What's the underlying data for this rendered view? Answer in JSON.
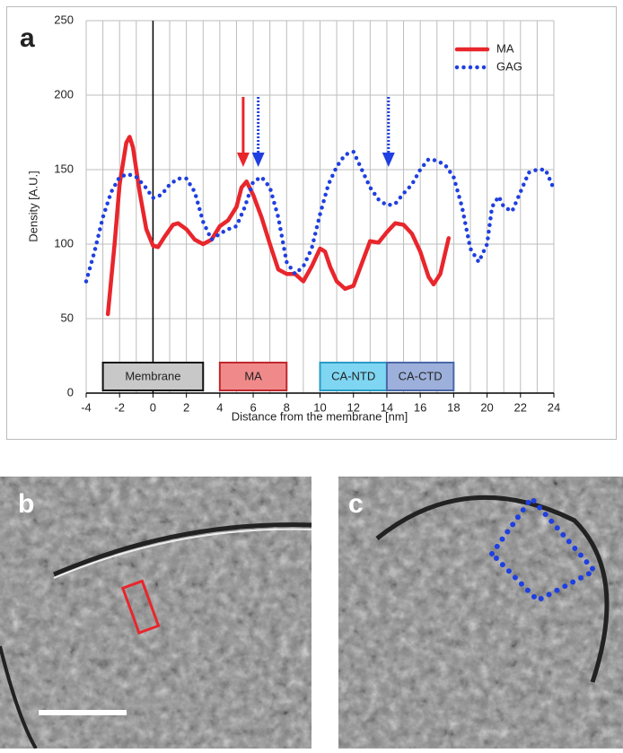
{
  "chart_data": {
    "type": "line",
    "panel_label": "a",
    "x_label": "Distance from the membrane [nm]",
    "y_label": "Density [A.U.]",
    "xlim": [
      -4,
      24
    ],
    "xticks": [
      -4,
      -2,
      0,
      2,
      4,
      6,
      8,
      10,
      12,
      14,
      16,
      18,
      20,
      22,
      24
    ],
    "xgridlines": [
      -3,
      -1,
      1,
      3,
      5,
      7,
      9,
      11,
      13,
      15,
      17,
      19,
      21,
      23
    ],
    "ylim": [
      0,
      250
    ],
    "yticks": [
      0,
      50,
      100,
      150,
      200,
      250
    ],
    "grid": true,
    "legend": "upper right",
    "series": [
      {
        "name": "MA",
        "color": "#e8262c",
        "style": "solid",
        "x": [
          -2.7,
          -2.3,
          -2,
          -1.6,
          -1.4,
          -1.2,
          -0.8,
          -0.4,
          0,
          0.3,
          0.7,
          1.2,
          1.5,
          2,
          2.5,
          3,
          3.5,
          4,
          4.5,
          5,
          5.3,
          5.6,
          6,
          6.5,
          7,
          7.5,
          8,
          8.5,
          9,
          9.5,
          10,
          10.3,
          10.6,
          11,
          11.5,
          12,
          12.5,
          13,
          13.5,
          14,
          14.5,
          15,
          15.5,
          16,
          16.5,
          16.8,
          17.2,
          17.7
        ],
        "values": [
          53,
          100,
          140,
          168,
          172,
          165,
          135,
          110,
          99,
          98,
          105,
          113,
          114,
          110,
          103,
          100,
          103,
          112,
          116,
          125,
          138,
          142,
          133,
          118,
          100,
          83,
          80,
          80,
          75,
          85,
          97,
          95,
          85,
          75,
          70,
          72,
          87,
          102,
          101,
          108,
          114,
          113,
          107,
          95,
          78,
          73,
          80,
          104
        ]
      },
      {
        "name": "GAG",
        "color": "#1f3fe0",
        "style": "dotted",
        "x": [
          -4,
          -3.5,
          -3,
          -2.5,
          -2,
          -1.5,
          -1,
          -0.5,
          0,
          0.5,
          1,
          1.5,
          2,
          2.5,
          3,
          3.5,
          4,
          4.5,
          5,
          5.5,
          6,
          6.5,
          7,
          7.5,
          8,
          8.5,
          9,
          9.5,
          10,
          10.5,
          11,
          11.5,
          12,
          12.5,
          13,
          13.5,
          14,
          14.5,
          15,
          15.5,
          16,
          16.5,
          17,
          17.5,
          18,
          18.5,
          19,
          19.5,
          20,
          20.3,
          20.7,
          21,
          21.5,
          22,
          22.5,
          23,
          23.5,
          24
        ],
        "values": [
          75,
          95,
          118,
          135,
          145,
          147,
          145,
          139,
          131,
          133,
          140,
          144,
          144,
          135,
          115,
          103,
          107,
          110,
          112,
          125,
          142,
          145,
          138,
          118,
          88,
          80,
          85,
          97,
          120,
          140,
          152,
          160,
          162,
          150,
          138,
          130,
          126,
          127,
          134,
          140,
          150,
          157,
          156,
          153,
          145,
          125,
          97,
          88,
          100,
          125,
          132,
          125,
          122,
          135,
          148,
          150,
          150,
          137
        ]
      }
    ],
    "annotations": [
      {
        "text": "Membrane",
        "x": [
          -3,
          3
        ],
        "color": "#c8c8c8",
        "edge": "#111111"
      },
      {
        "text": "MA",
        "x": [
          4,
          8
        ],
        "color": "#f08a8a",
        "edge": "#c0282c"
      },
      {
        "text": "CA-NTD",
        "x": [
          10,
          14
        ],
        "color": "#7fd6f2",
        "edge": "#2a9bc4"
      },
      {
        "text": "CA-CTD",
        "x": [
          14,
          18
        ],
        "color": "#9db0dc",
        "edge": "#4a68a8"
      }
    ],
    "arrows": [
      {
        "x": 5.4,
        "color": "#e8262c",
        "style": "solid"
      },
      {
        "x": 6.3,
        "color": "#1f3fe0",
        "style": "dotted"
      },
      {
        "x": 14.1,
        "color": "#1f3fe0",
        "style": "dotted"
      }
    ]
  },
  "panels": [
    {
      "label": "b"
    },
    {
      "label": "c"
    }
  ]
}
